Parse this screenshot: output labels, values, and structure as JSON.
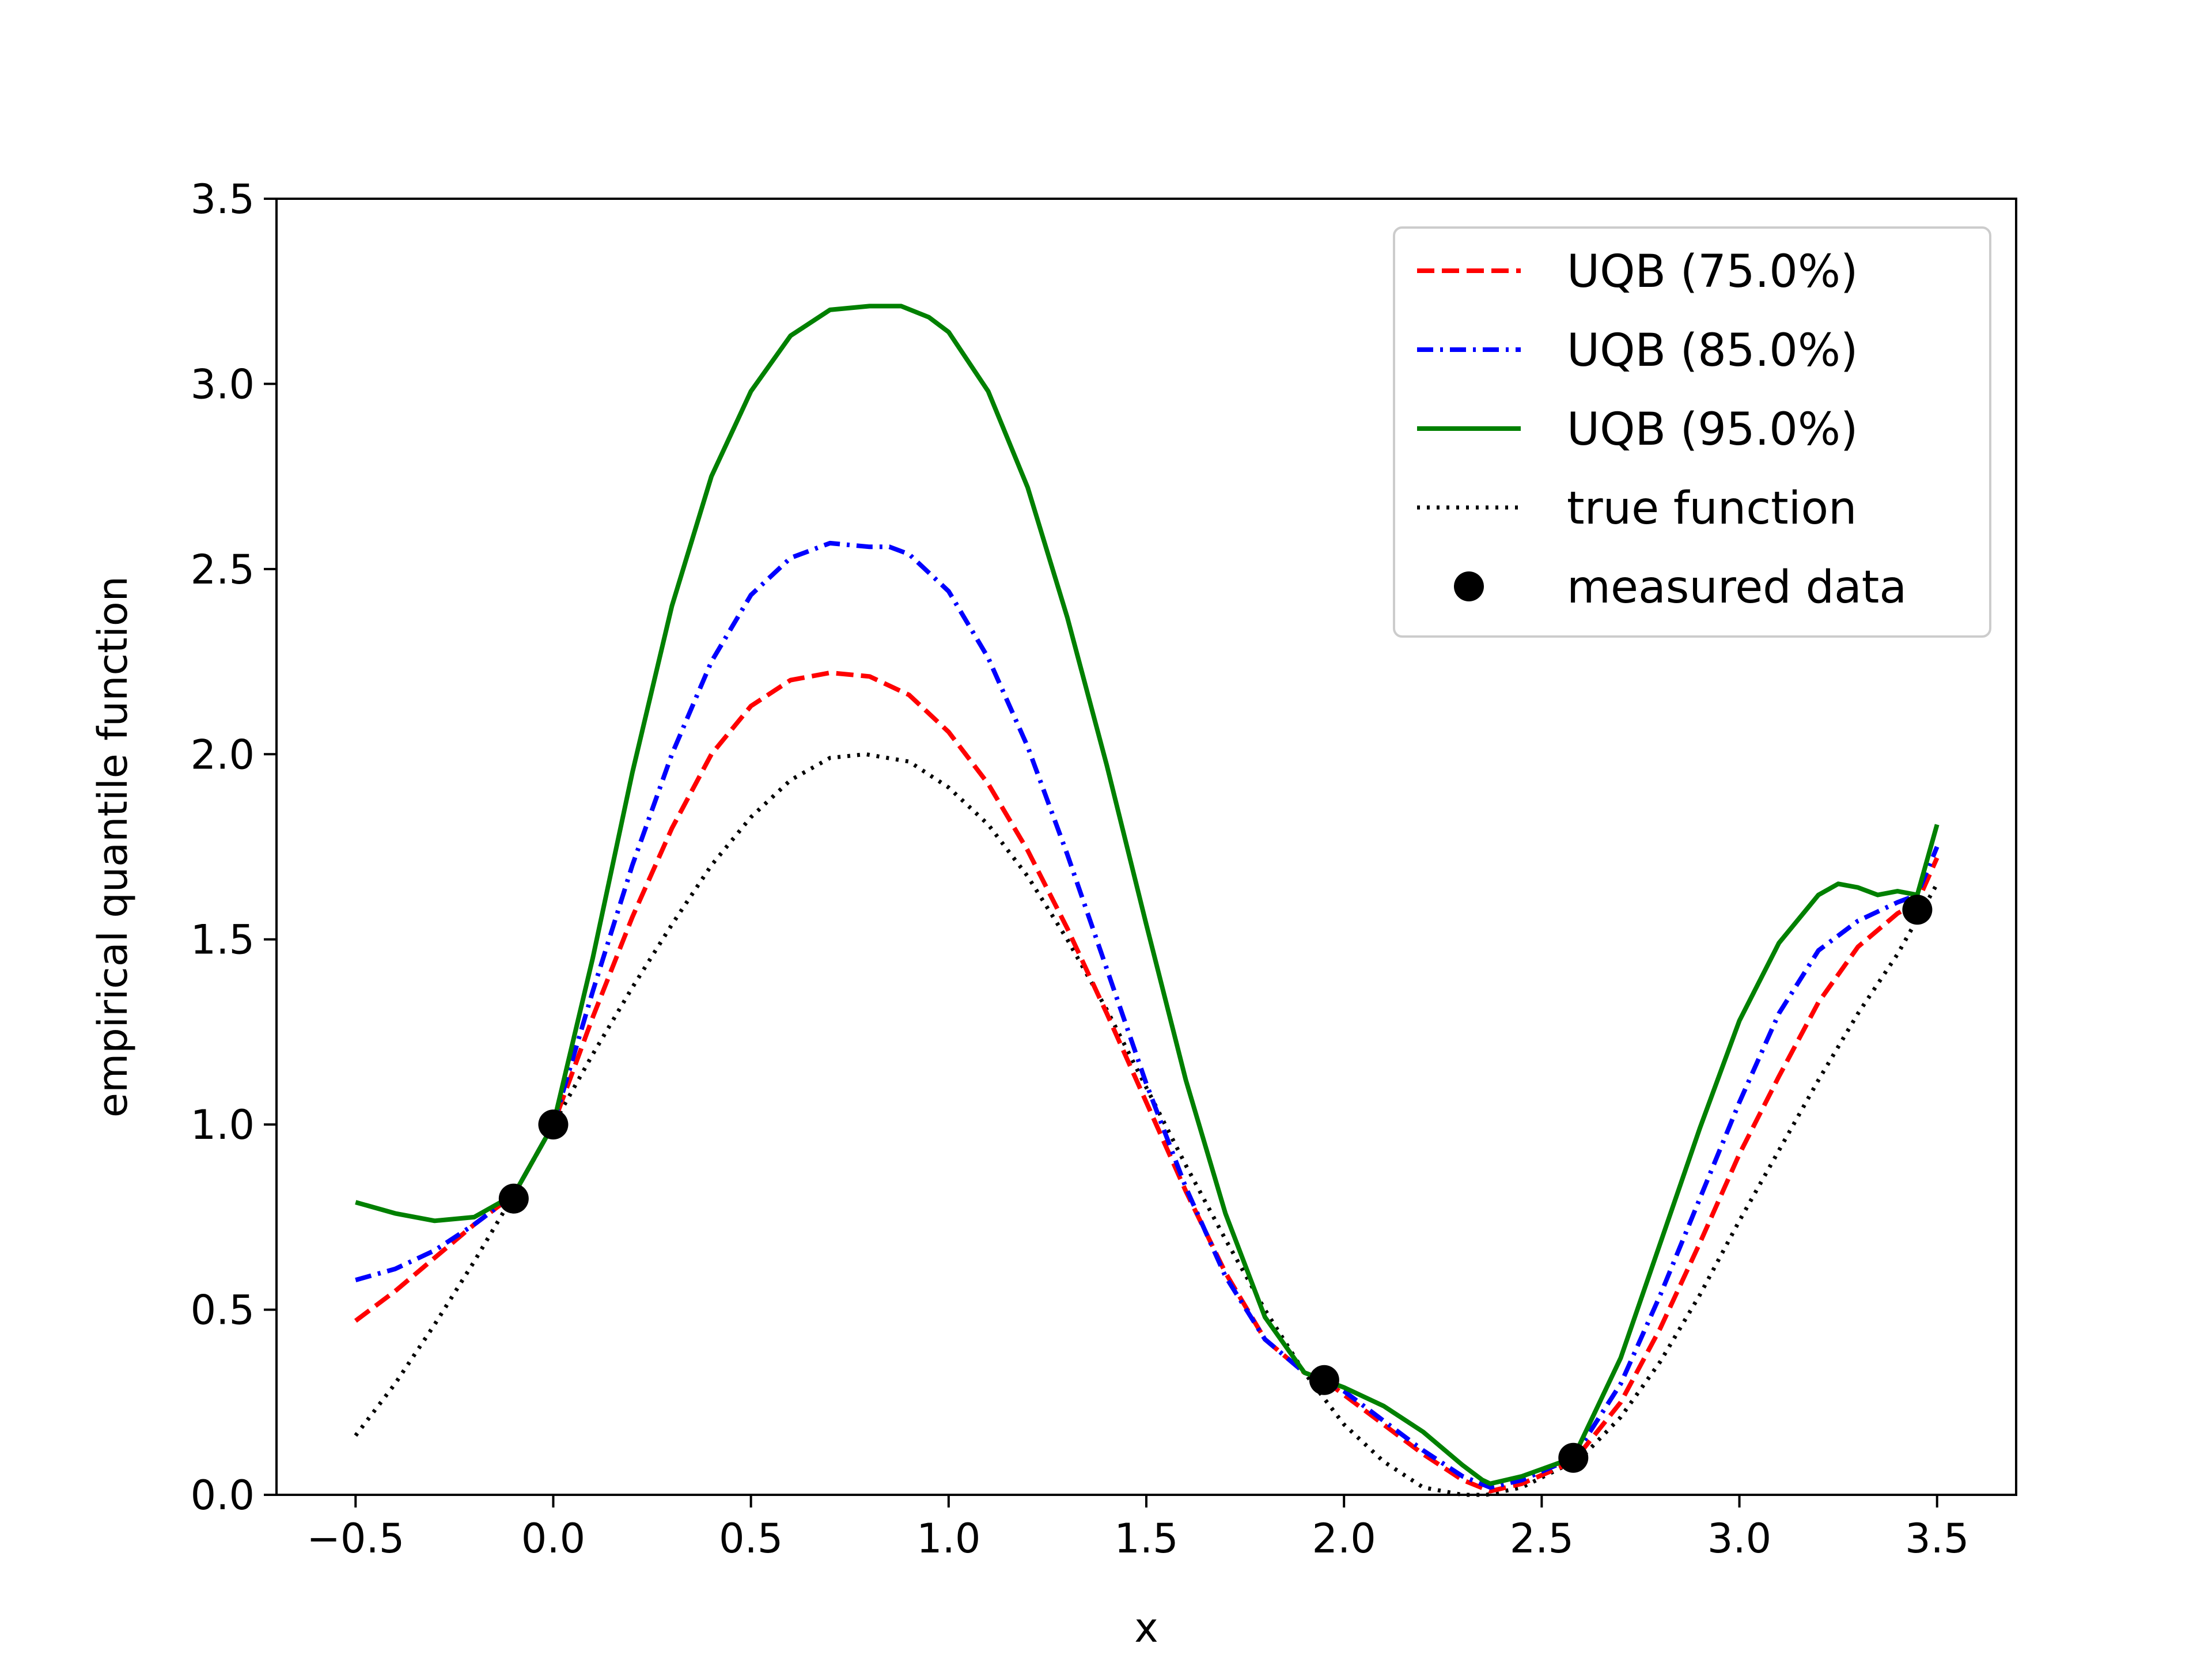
{
  "chart_data": {
    "type": "line",
    "title": "",
    "xlabel": "x",
    "ylabel": "empirical quantile function",
    "xlim": [
      -0.7,
      3.7
    ],
    "ylim": [
      0.0,
      3.5
    ],
    "xticks": [
      -0.5,
      0.0,
      0.5,
      1.0,
      1.5,
      2.0,
      2.5,
      3.0,
      3.5
    ],
    "xtick_labels": [
      "−0.5",
      "0.0",
      "0.5",
      "1.0",
      "1.5",
      "2.0",
      "2.5",
      "3.0",
      "3.5"
    ],
    "yticks": [
      0.0,
      0.5,
      1.0,
      1.5,
      2.0,
      2.5,
      3.0,
      3.5
    ],
    "ytick_labels": [
      "0.0",
      "0.5",
      "1.0",
      "1.5",
      "2.0",
      "2.5",
      "3.0",
      "3.5"
    ],
    "grid": false,
    "legend_position": "top-right",
    "series": [
      {
        "name": "UQB (75.0%)",
        "color": "#ff0000",
        "style": "dashed",
        "x": [
          -0.5,
          -0.4,
          -0.3,
          -0.2,
          -0.1,
          0.0,
          0.1,
          0.2,
          0.3,
          0.4,
          0.5,
          0.6,
          0.7,
          0.8,
          0.9,
          1.0,
          1.1,
          1.2,
          1.3,
          1.4,
          1.5,
          1.6,
          1.7,
          1.8,
          1.9,
          1.95,
          2.0,
          2.1,
          2.2,
          2.3,
          2.37,
          2.45,
          2.58,
          2.7,
          2.8,
          2.9,
          3.0,
          3.1,
          3.2,
          3.3,
          3.4,
          3.45,
          3.5
        ],
        "y": [
          0.47,
          0.55,
          0.64,
          0.73,
          0.81,
          1.0,
          1.29,
          1.56,
          1.8,
          2.0,
          2.13,
          2.2,
          2.22,
          2.21,
          2.16,
          2.06,
          1.92,
          1.74,
          1.53,
          1.3,
          1.06,
          0.82,
          0.6,
          0.42,
          0.33,
          0.31,
          0.27,
          0.19,
          0.11,
          0.04,
          0.01,
          0.03,
          0.09,
          0.25,
          0.45,
          0.68,
          0.92,
          1.13,
          1.33,
          1.48,
          1.57,
          1.6,
          1.72
        ]
      },
      {
        "name": "UQB (85.0%)",
        "color": "#0000ff",
        "style": "dashdot",
        "x": [
          -0.5,
          -0.4,
          -0.3,
          -0.2,
          -0.1,
          0.0,
          0.1,
          0.2,
          0.3,
          0.4,
          0.5,
          0.6,
          0.7,
          0.8,
          0.85,
          0.9,
          1.0,
          1.1,
          1.2,
          1.3,
          1.4,
          1.5,
          1.6,
          1.7,
          1.8,
          1.9,
          1.95,
          2.0,
          2.1,
          2.2,
          2.3,
          2.37,
          2.45,
          2.58,
          2.7,
          2.8,
          2.9,
          3.0,
          3.1,
          3.2,
          3.3,
          3.4,
          3.45,
          3.5
        ],
        "y": [
          0.58,
          0.61,
          0.66,
          0.73,
          0.81,
          1.0,
          1.36,
          1.7,
          2.0,
          2.25,
          2.43,
          2.53,
          2.57,
          2.56,
          2.56,
          2.54,
          2.44,
          2.26,
          2.02,
          1.73,
          1.42,
          1.11,
          0.83,
          0.59,
          0.42,
          0.33,
          0.31,
          0.28,
          0.2,
          0.12,
          0.05,
          0.02,
          0.04,
          0.1,
          0.3,
          0.54,
          0.8,
          1.06,
          1.3,
          1.47,
          1.55,
          1.6,
          1.62,
          1.75
        ]
      },
      {
        "name": "UQB (95.0%)",
        "color": "#008000",
        "style": "solid",
        "x": [
          -0.5,
          -0.4,
          -0.3,
          -0.2,
          -0.1,
          0.0,
          0.1,
          0.2,
          0.3,
          0.4,
          0.5,
          0.6,
          0.7,
          0.8,
          0.88,
          0.95,
          1.0,
          1.1,
          1.2,
          1.3,
          1.4,
          1.5,
          1.6,
          1.7,
          1.8,
          1.9,
          1.95,
          2.0,
          2.1,
          2.2,
          2.3,
          2.35,
          2.37,
          2.45,
          2.58,
          2.7,
          2.8,
          2.9,
          3.0,
          3.1,
          3.2,
          3.25,
          3.3,
          3.35,
          3.4,
          3.45,
          3.5
        ],
        "y": [
          0.79,
          0.76,
          0.74,
          0.75,
          0.81,
          1.0,
          1.45,
          1.95,
          2.4,
          2.75,
          2.98,
          3.13,
          3.2,
          3.21,
          3.21,
          3.18,
          3.14,
          2.98,
          2.72,
          2.37,
          1.97,
          1.54,
          1.12,
          0.76,
          0.48,
          0.33,
          0.31,
          0.29,
          0.24,
          0.17,
          0.08,
          0.04,
          0.03,
          0.05,
          0.1,
          0.37,
          0.68,
          0.99,
          1.28,
          1.49,
          1.62,
          1.65,
          1.64,
          1.62,
          1.63,
          1.62,
          1.81
        ]
      },
      {
        "name": "true function",
        "color": "#000000",
        "style": "dotted",
        "x": [
          -0.5,
          -0.4,
          -0.3,
          -0.2,
          -0.1,
          0.0,
          0.1,
          0.2,
          0.3,
          0.4,
          0.5,
          0.6,
          0.7,
          0.79,
          0.9,
          1.0,
          1.1,
          1.2,
          1.3,
          1.4,
          1.5,
          1.6,
          1.7,
          1.8,
          1.9,
          2.0,
          2.1,
          2.2,
          2.3,
          2.36,
          2.45,
          2.6,
          2.7,
          2.8,
          2.9,
          3.0,
          3.1,
          3.2,
          3.3,
          3.4,
          3.5
        ],
        "y": [
          0.16,
          0.3,
          0.46,
          0.63,
          0.81,
          1.0,
          1.19,
          1.37,
          1.54,
          1.7,
          1.83,
          1.93,
          1.99,
          2.0,
          1.98,
          1.91,
          1.81,
          1.67,
          1.5,
          1.31,
          1.1,
          0.89,
          0.69,
          0.5,
          0.33,
          0.19,
          0.09,
          0.02,
          0.0,
          0.0,
          0.02,
          0.1,
          0.21,
          0.36,
          0.54,
          0.74,
          0.93,
          1.12,
          1.3,
          1.46,
          1.65
        ]
      }
    ],
    "measured_data": {
      "name": "measured data",
      "color": "#000000",
      "x": [
        -0.1,
        0.0,
        1.95,
        2.58,
        3.45
      ],
      "y": [
        0.8,
        1.0,
        0.31,
        0.1,
        1.58
      ]
    }
  }
}
